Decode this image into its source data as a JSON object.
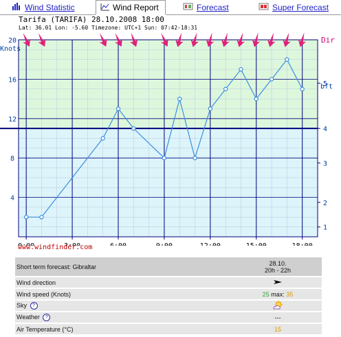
{
  "tabs": [
    {
      "label": "Wind Statistic",
      "icon": "bar-chart-icon"
    },
    {
      "label": "Wind Report",
      "icon": "line-chart-icon"
    },
    {
      "label": "Forecast",
      "icon": "weather-icon"
    },
    {
      "label": "Super Forecast",
      "icon": "super-forecast-icon"
    }
  ],
  "chart": {
    "title": "Tarifa (TARIFA) 28.10.2008 18:00",
    "subtitle": "Lat: 36.01 Lon: -5.60 Timezone: UTC+1 Sun: 07:42-18:31",
    "left_unit": "Knots",
    "right_top_label": "Dir",
    "right_unit": "bft",
    "colors": {
      "upper_fill": "#ddf7dd",
      "lower_fill": "#ddf4fa",
      "line": "#3a8ee0",
      "grid": "#00007a",
      "arrows": "#e0207a",
      "threshold": "#00007a"
    }
  },
  "chart_data": {
    "type": "line",
    "title": "Tarifa (TARIFA) 28.10.2008 18:00",
    "ylabel": "Knots",
    "y2label": "bft",
    "ylim": [
      0,
      20
    ],
    "xlim": [
      -0.5,
      19
    ],
    "x_ticks": [
      "0:00",
      "3:00",
      "6:00",
      "9:00",
      "12:00",
      "15:00",
      "18:00"
    ],
    "y_ticks": [
      4,
      8,
      12,
      16,
      20
    ],
    "y2_ticks": [
      {
        "label": "1",
        "knots": 1
      },
      {
        "label": "2",
        "knots": 3.5
      },
      {
        "label": "3",
        "knots": 7.5
      },
      {
        "label": "4",
        "knots": 11
      },
      {
        "label": "5",
        "knots": 15.6
      }
    ],
    "threshold_knots": 11,
    "series": [
      {
        "x": [
          0,
          1,
          5,
          6,
          7,
          9,
          10,
          11,
          12,
          13,
          14,
          15,
          16,
          17,
          18
        ],
        "values": [
          2,
          2,
          10,
          13,
          11,
          8,
          14,
          8,
          13,
          15,
          17,
          14,
          16,
          18,
          15
        ]
      }
    ],
    "direction_arrows": [
      {
        "hour": 0,
        "deg": 65
      },
      {
        "hour": 1,
        "deg": 65
      },
      {
        "hour": 5,
        "deg": 65
      },
      {
        "hour": 6,
        "deg": 65
      },
      {
        "hour": 7,
        "deg": 70
      },
      {
        "hour": 9,
        "deg": 65
      },
      {
        "hour": 10,
        "deg": 105
      },
      {
        "hour": 11,
        "deg": 105
      },
      {
        "hour": 12,
        "deg": 105
      },
      {
        "hour": 13,
        "deg": 105
      },
      {
        "hour": 14,
        "deg": 105
      },
      {
        "hour": 15,
        "deg": 105
      },
      {
        "hour": 16,
        "deg": 105
      },
      {
        "hour": 17,
        "deg": 105
      },
      {
        "hour": 18,
        "deg": 105
      }
    ]
  },
  "footer_link": "www.windfinder.com",
  "forecast": {
    "header_label": "Short term forecast: Gibraltar",
    "date": "28.10.",
    "time": "20h - 22h",
    "rows": {
      "wind_direction": "Wind direction",
      "wind_speed": "Wind speed (Knots)",
      "wind_speed_value": "25",
      "max_label": "max:",
      "max_value": "35",
      "sky": "Sky",
      "weather": "Weather",
      "weather_value": "---",
      "air_temp": "Air Temperature (°C)",
      "air_temp_value": "15"
    },
    "help_glyph": "?"
  }
}
